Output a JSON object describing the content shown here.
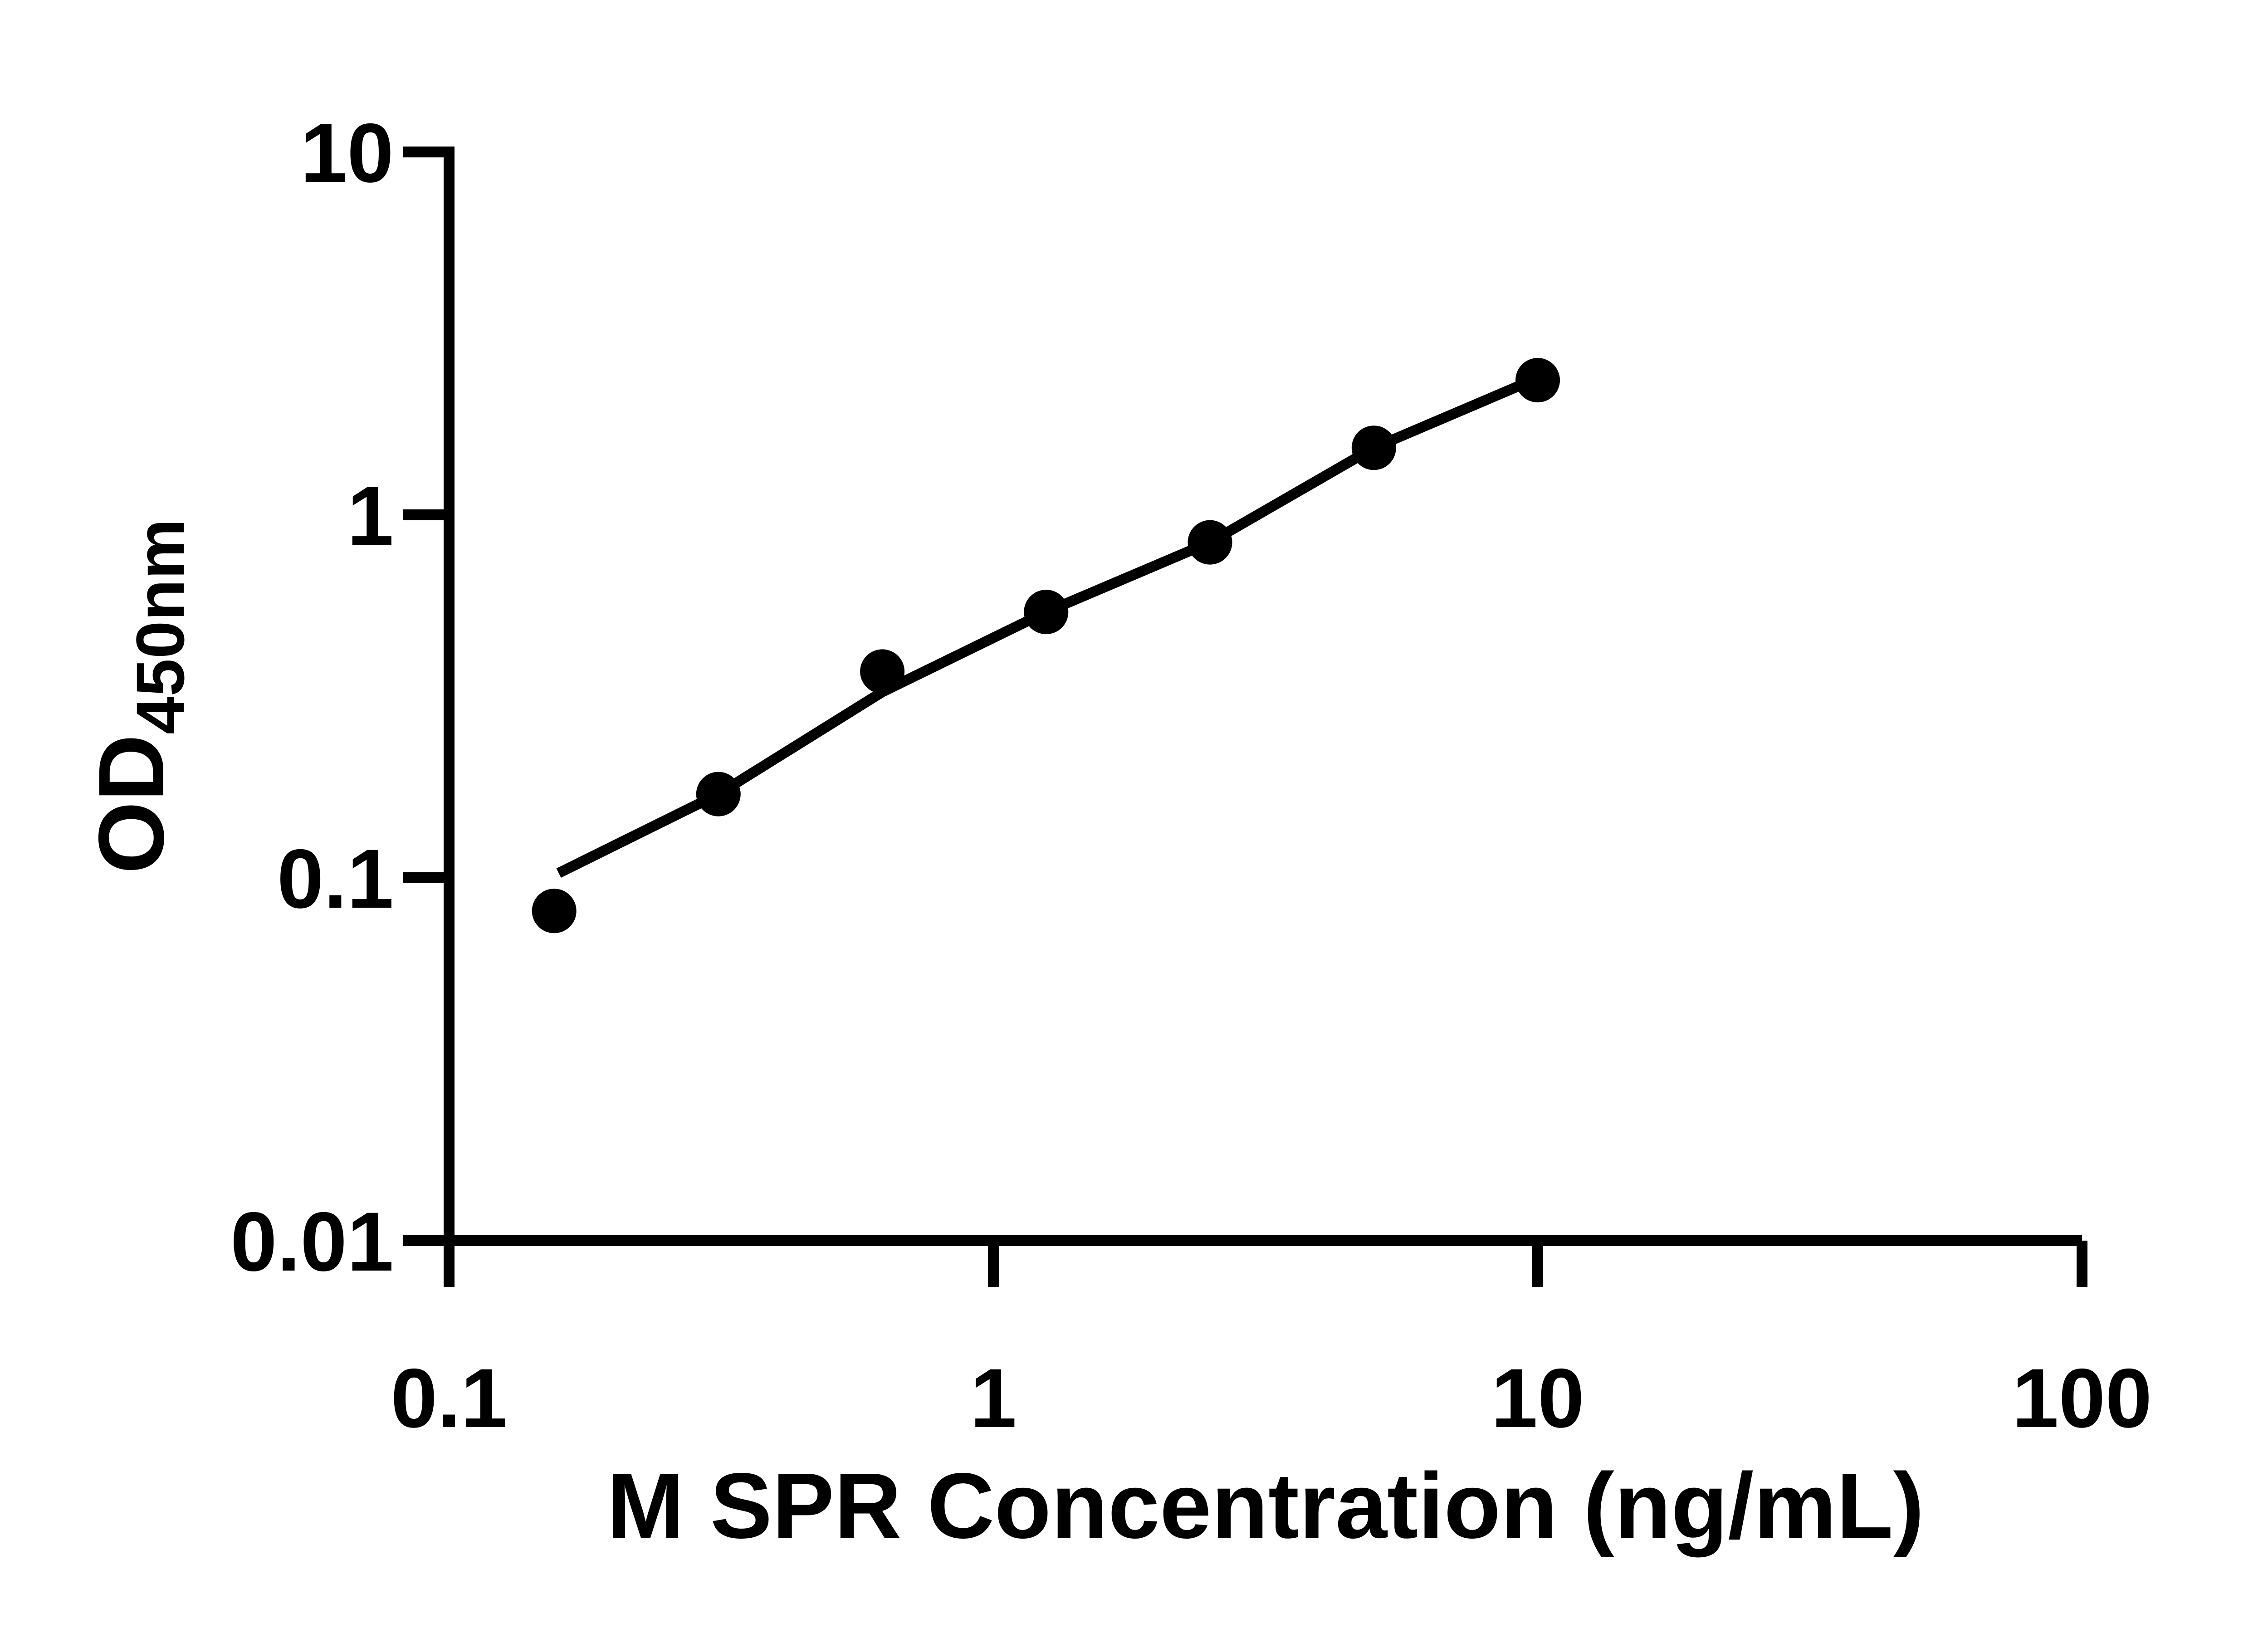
{
  "chart_data": {
    "type": "scatter",
    "title": "",
    "xlabel": "M SPR Concentration (ng/mL)",
    "ylabel_main": "OD",
    "ylabel_sub": "450nm",
    "x_scale": "log",
    "y_scale": "log",
    "xlim": [
      0.1,
      100
    ],
    "ylim": [
      0.01,
      10
    ],
    "x_ticks": [
      0.1,
      1,
      10,
      100
    ],
    "x_tick_labels": [
      "0.1",
      "1",
      "10",
      "100"
    ],
    "y_ticks": [
      10,
      1,
      0.1,
      0.01
    ],
    "y_tick_labels": [
      "10",
      "1",
      "0.1",
      "0.01"
    ],
    "grid": "off",
    "legend": "none",
    "marker_shape": "filled-circle",
    "marker_color": "#000000",
    "line_color": "#000000",
    "background_color": "#ffffff",
    "points": [
      {
        "x": 0.156,
        "y": 0.081
      },
      {
        "x": 0.3125,
        "y": 0.17
      },
      {
        "x": 0.625,
        "y": 0.37
      },
      {
        "x": 1.25,
        "y": 0.54
      },
      {
        "x": 2.5,
        "y": 0.84
      },
      {
        "x": 5,
        "y": 1.53
      },
      {
        "x": 10,
        "y": 2.35
      }
    ],
    "fit_line": [
      {
        "x": 0.159,
        "y": 0.103
      },
      {
        "x": 0.3125,
        "y": 0.17
      },
      {
        "x": 0.625,
        "y": 0.325
      },
      {
        "x": 1.25,
        "y": 0.54
      },
      {
        "x": 2.5,
        "y": 0.84
      },
      {
        "x": 5,
        "y": 1.53
      },
      {
        "x": 9.2,
        "y": 2.26
      }
    ]
  }
}
